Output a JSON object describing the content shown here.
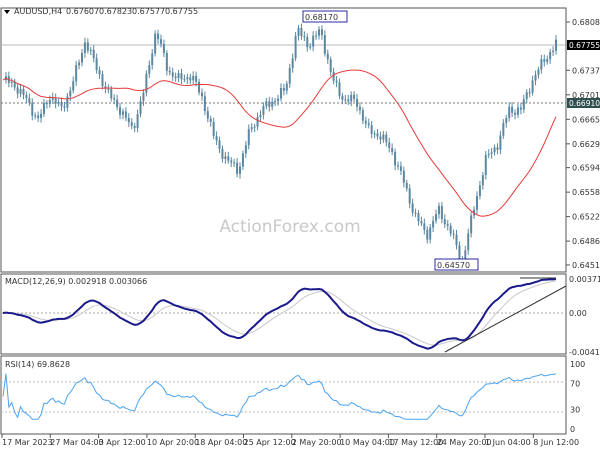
{
  "header": {
    "symbol": "AUDUSD,H4",
    "open": "0.67607",
    "high": "0.67823",
    "low": "0.67577",
    "close": "0.67755"
  },
  "watermark": "ActionForex.com",
  "colors": {
    "bars": "#5b87a0",
    "ma": "#e83a3a",
    "macd": "#1a1a8c",
    "signal": "#c8c8c8",
    "rsi": "#4aa3f0",
    "current_price_bg": "#000000",
    "level_bg": "#2f4f4f"
  },
  "chart_data": [
    {
      "type": "bar",
      "title": "AUDUSD,H4",
      "y_ticks": [
        "0.68080",
        "0.67370",
        "0.67010",
        "0.66650",
        "0.66290",
        "0.65940",
        "0.65580",
        "0.65220",
        "0.64860",
        "0.64510"
      ],
      "ylim": [
        0.6451,
        0.682
      ],
      "x_ticks": [
        "17 Mar 2023",
        "27 Mar 04:00",
        "3 Apr 12:00",
        "10 Apr 20:00",
        "18 Apr 04:00",
        "25 Apr 12:00",
        "2 May 20:00",
        "10 May 04:00",
        "17 May 12:00",
        "24 May 20:00",
        "1 Jun 04:00",
        "8 Jun 12:00"
      ],
      "approx_close_path": [
        0.67227,
        0.67154,
        0.66933,
        0.6664,
        0.67007,
        0.66786,
        0.67227,
        0.67815,
        0.67374,
        0.67007,
        0.66786,
        0.66492,
        0.6708,
        0.67962,
        0.67374,
        0.67227,
        0.67301,
        0.66933,
        0.66345,
        0.66051,
        0.65904,
        0.66492,
        0.66786,
        0.66933,
        0.6708,
        0.67962,
        0.67742,
        0.67962,
        0.67227,
        0.66933,
        0.66933,
        0.66492,
        0.66419,
        0.66198,
        0.65757,
        0.65243,
        0.64949,
        0.65316,
        0.65022,
        0.64552,
        0.65316,
        0.66051,
        0.66272,
        0.66786,
        0.66786,
        0.67227,
        0.67521,
        0.67755
      ],
      "moving_average": {
        "color": "#e83a3a"
      },
      "annotations": {
        "high_label": "0.68170",
        "low_label": "0.64570",
        "current_price": "0.67755",
        "level": "0.66910"
      },
      "grid": false
    },
    {
      "type": "line",
      "title": "MACD(12,26,9) 0.002918 0.003066",
      "y_ticks": [
        "0.003715",
        "0.00",
        "-0.004102"
      ],
      "ylim": [
        -0.004102,
        0.003715
      ],
      "series": [
        {
          "role": "macd"
        },
        {
          "role": "signal"
        }
      ]
    },
    {
      "type": "line",
      "title": "RSI(14) 69.8628",
      "y_ticks": [
        "100",
        "70",
        "30",
        "0"
      ],
      "ylim": [
        0,
        100
      ]
    }
  ]
}
